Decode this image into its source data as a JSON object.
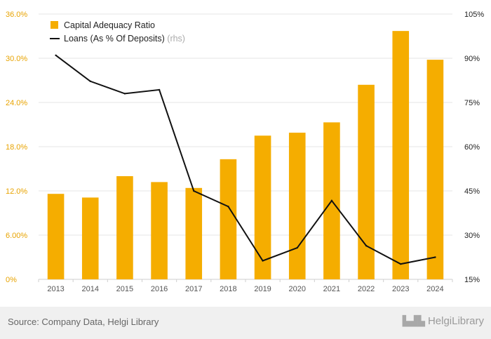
{
  "chart_data": {
    "type": "bar+line",
    "categories": [
      "2013",
      "2014",
      "2015",
      "2016",
      "2017",
      "2018",
      "2019",
      "2020",
      "2021",
      "2022",
      "2023",
      "2024"
    ],
    "series": [
      {
        "name": "Capital Adequacy Ratio",
        "type": "bar",
        "axis": "left",
        "color": "#f5ad00",
        "values": [
          11.6,
          11.1,
          14.0,
          13.2,
          12.4,
          16.3,
          19.5,
          19.9,
          21.3,
          26.4,
          33.7,
          29.8
        ]
      },
      {
        "name": "Loans (As % Of Deposits)",
        "suffix": "(rhs)",
        "type": "line",
        "axis": "right",
        "color": "#111111",
        "values": [
          91.0,
          82.2,
          78.0,
          79.3,
          45.0,
          39.7,
          21.3,
          25.7,
          41.7,
          26.4,
          20.2,
          22.5
        ]
      }
    ],
    "left_axis": {
      "min": 0,
      "max": 36,
      "ticks": [
        0,
        6,
        12,
        18,
        24,
        30,
        36
      ],
      "tick_labels": [
        "0%",
        "6.00%",
        "12.0%",
        "18.0%",
        "24.0%",
        "30.0%",
        "36.0%"
      ],
      "label_color": "#e8a300"
    },
    "right_axis": {
      "min": 15,
      "max": 105,
      "ticks": [
        15,
        30,
        45,
        60,
        75,
        90,
        105
      ],
      "tick_labels": [
        "15%",
        "30%",
        "45%",
        "60%",
        "75%",
        "90%",
        "105%"
      ]
    },
    "grid": true,
    "legend_position": "top-left"
  },
  "footer": {
    "source": "Source: Company Data, Helgi Library",
    "brand": "HelgiLibrary"
  }
}
